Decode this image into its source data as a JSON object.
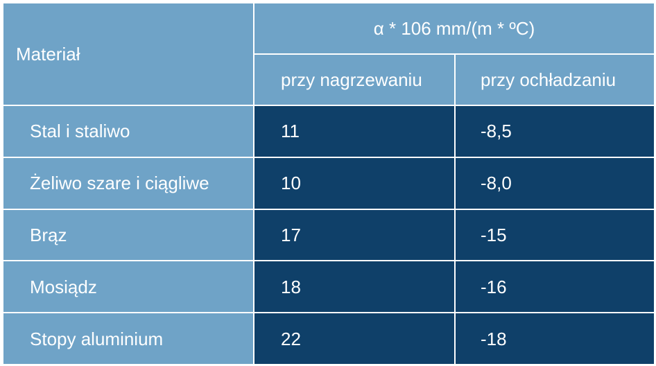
{
  "table": {
    "header": {
      "material": "Materiał",
      "coefficient": "α * 106 mm/(m * ºC)",
      "heating": "przy nagrzewaniu",
      "cooling": "przy ochładzaniu"
    },
    "rows": [
      {
        "material": "Stal i staliwo",
        "heating": "11",
        "cooling": "-8,5"
      },
      {
        "material": "Żeliwo szare i ciągliwe",
        "heating": "10",
        "cooling": "-8,0"
      },
      {
        "material": "Brąz",
        "heating": "17",
        "cooling": "-15"
      },
      {
        "material": "Mosiądz",
        "heating": "18",
        "cooling": "-16"
      },
      {
        "material": "Stopy aluminium",
        "heating": "22",
        "cooling": "-18"
      }
    ],
    "colors": {
      "header_background": "#6fa3c7",
      "value_background": "#0f4069",
      "text": "#ffffff",
      "grid_lines": "#ffffff"
    }
  }
}
